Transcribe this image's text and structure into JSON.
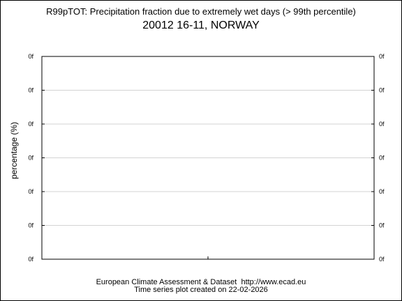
{
  "title": "R99pTOT: Precipitation fraction due to extremely wet days (> 99th percentile)",
  "subtitle": "20012 16-11, NORWAY",
  "footer": {
    "line1": "European Climate Assessment & Dataset  http://www.ecad.eu",
    "line2": "Time series plot created on 22-02-2026"
  },
  "chart_data": {
    "type": "line",
    "title": "R99pTOT: Precipitation fraction due to extremely wet days (> 99th percentile)",
    "subtitle": "20012 16-11, NORWAY",
    "xlabel": "",
    "ylabel": "percentage (%)",
    "y_tick_labels": [
      "0f",
      "0f",
      "0f",
      "0f",
      "0f",
      "0f",
      "0f"
    ],
    "y_tick_labels_right": [
      "0f",
      "0f",
      "0f",
      "0f",
      "0f",
      "0f",
      "0f"
    ],
    "x_tick_labels": [],
    "series": [],
    "grid": true,
    "grid_color": "#d3d3d3"
  }
}
